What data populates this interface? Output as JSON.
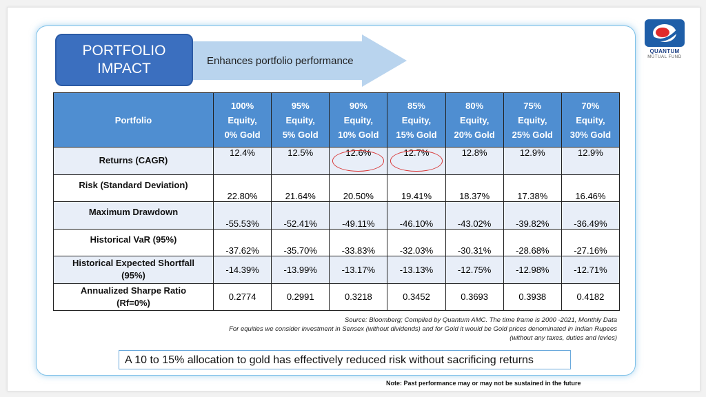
{
  "header": {
    "title_line1": "PORTFOLIO",
    "title_line2": "IMPACT",
    "arrow_text": "Enhances portfolio performance"
  },
  "logo": {
    "brand": "QUANTUM",
    "sub": "MUTUAL FUND",
    "icon": "quantum-logo-icon"
  },
  "table": {
    "header_label": "Portfolio",
    "columns": [
      [
        "100%",
        "Equity,",
        "0% Gold"
      ],
      [
        "95%",
        "Equity,",
        "5% Gold"
      ],
      [
        "90%",
        "Equity,",
        "10% Gold"
      ],
      [
        "85%",
        "Equity,",
        "15% Gold"
      ],
      [
        "80%",
        "Equity,",
        "20% Gold"
      ],
      [
        "75%",
        "Equity,",
        "25% Gold"
      ],
      [
        "70%",
        "Equity,",
        "30% Gold"
      ]
    ],
    "rows": [
      {
        "label": "Returns (CAGR)",
        "values": [
          "12.4%",
          "12.5%",
          "12.6%",
          "12.7%",
          "12.8%",
          "12.9%",
          "12.9%"
        ]
      },
      {
        "label": "Risk (Standard Deviation)",
        "values": [
          "22.80%",
          "21.64%",
          "20.50%",
          "19.41%",
          "18.37%",
          "17.38%",
          "16.46%"
        ]
      },
      {
        "label": "Maximum Drawdown",
        "values": [
          "-55.53%",
          "-52.41%",
          "-49.11%",
          "-46.10%",
          "-43.02%",
          "-39.82%",
          "-36.49%"
        ]
      },
      {
        "label": "Historical VaR (95%)",
        "values": [
          "-37.62%",
          "-35.70%",
          "-33.83%",
          "-32.03%",
          "-30.31%",
          "-28.68%",
          "-27.16%"
        ]
      },
      {
        "label_line1": "Historical Expected Shortfall",
        "label_line2": "(95%)",
        "values": [
          "-14.39%",
          "-13.99%",
          "-13.17%",
          "-13.13%",
          "-12.75%",
          "-12.98%",
          "-12.71%"
        ]
      },
      {
        "label_line1": "Annualized Sharpe Ratio",
        "label_line2": "(Rf=0%)",
        "values": [
          "0.2774",
          "0.2991",
          "0.3218",
          "0.3452",
          "0.3693",
          "0.3938",
          "0.4182"
        ]
      }
    ],
    "highlight_color": "#d93838",
    "header_color": "#4f8ed1"
  },
  "source": {
    "line1": "Source: Bloomberg; Compiled by Quantum AMC. The time frame is 2000 -2021, Monthly Data",
    "line2": "For equities we consider investment in Sensex (without dividends) and for Gold it would be Gold prices denominated in Indian Rupees",
    "line3": "(without any taxes, duties and levies)"
  },
  "callout": "A 10 to 15% allocation to gold has effectively reduced risk without sacrificing returns",
  "note": "Note: Past performance may or may not be sustained in the future"
}
